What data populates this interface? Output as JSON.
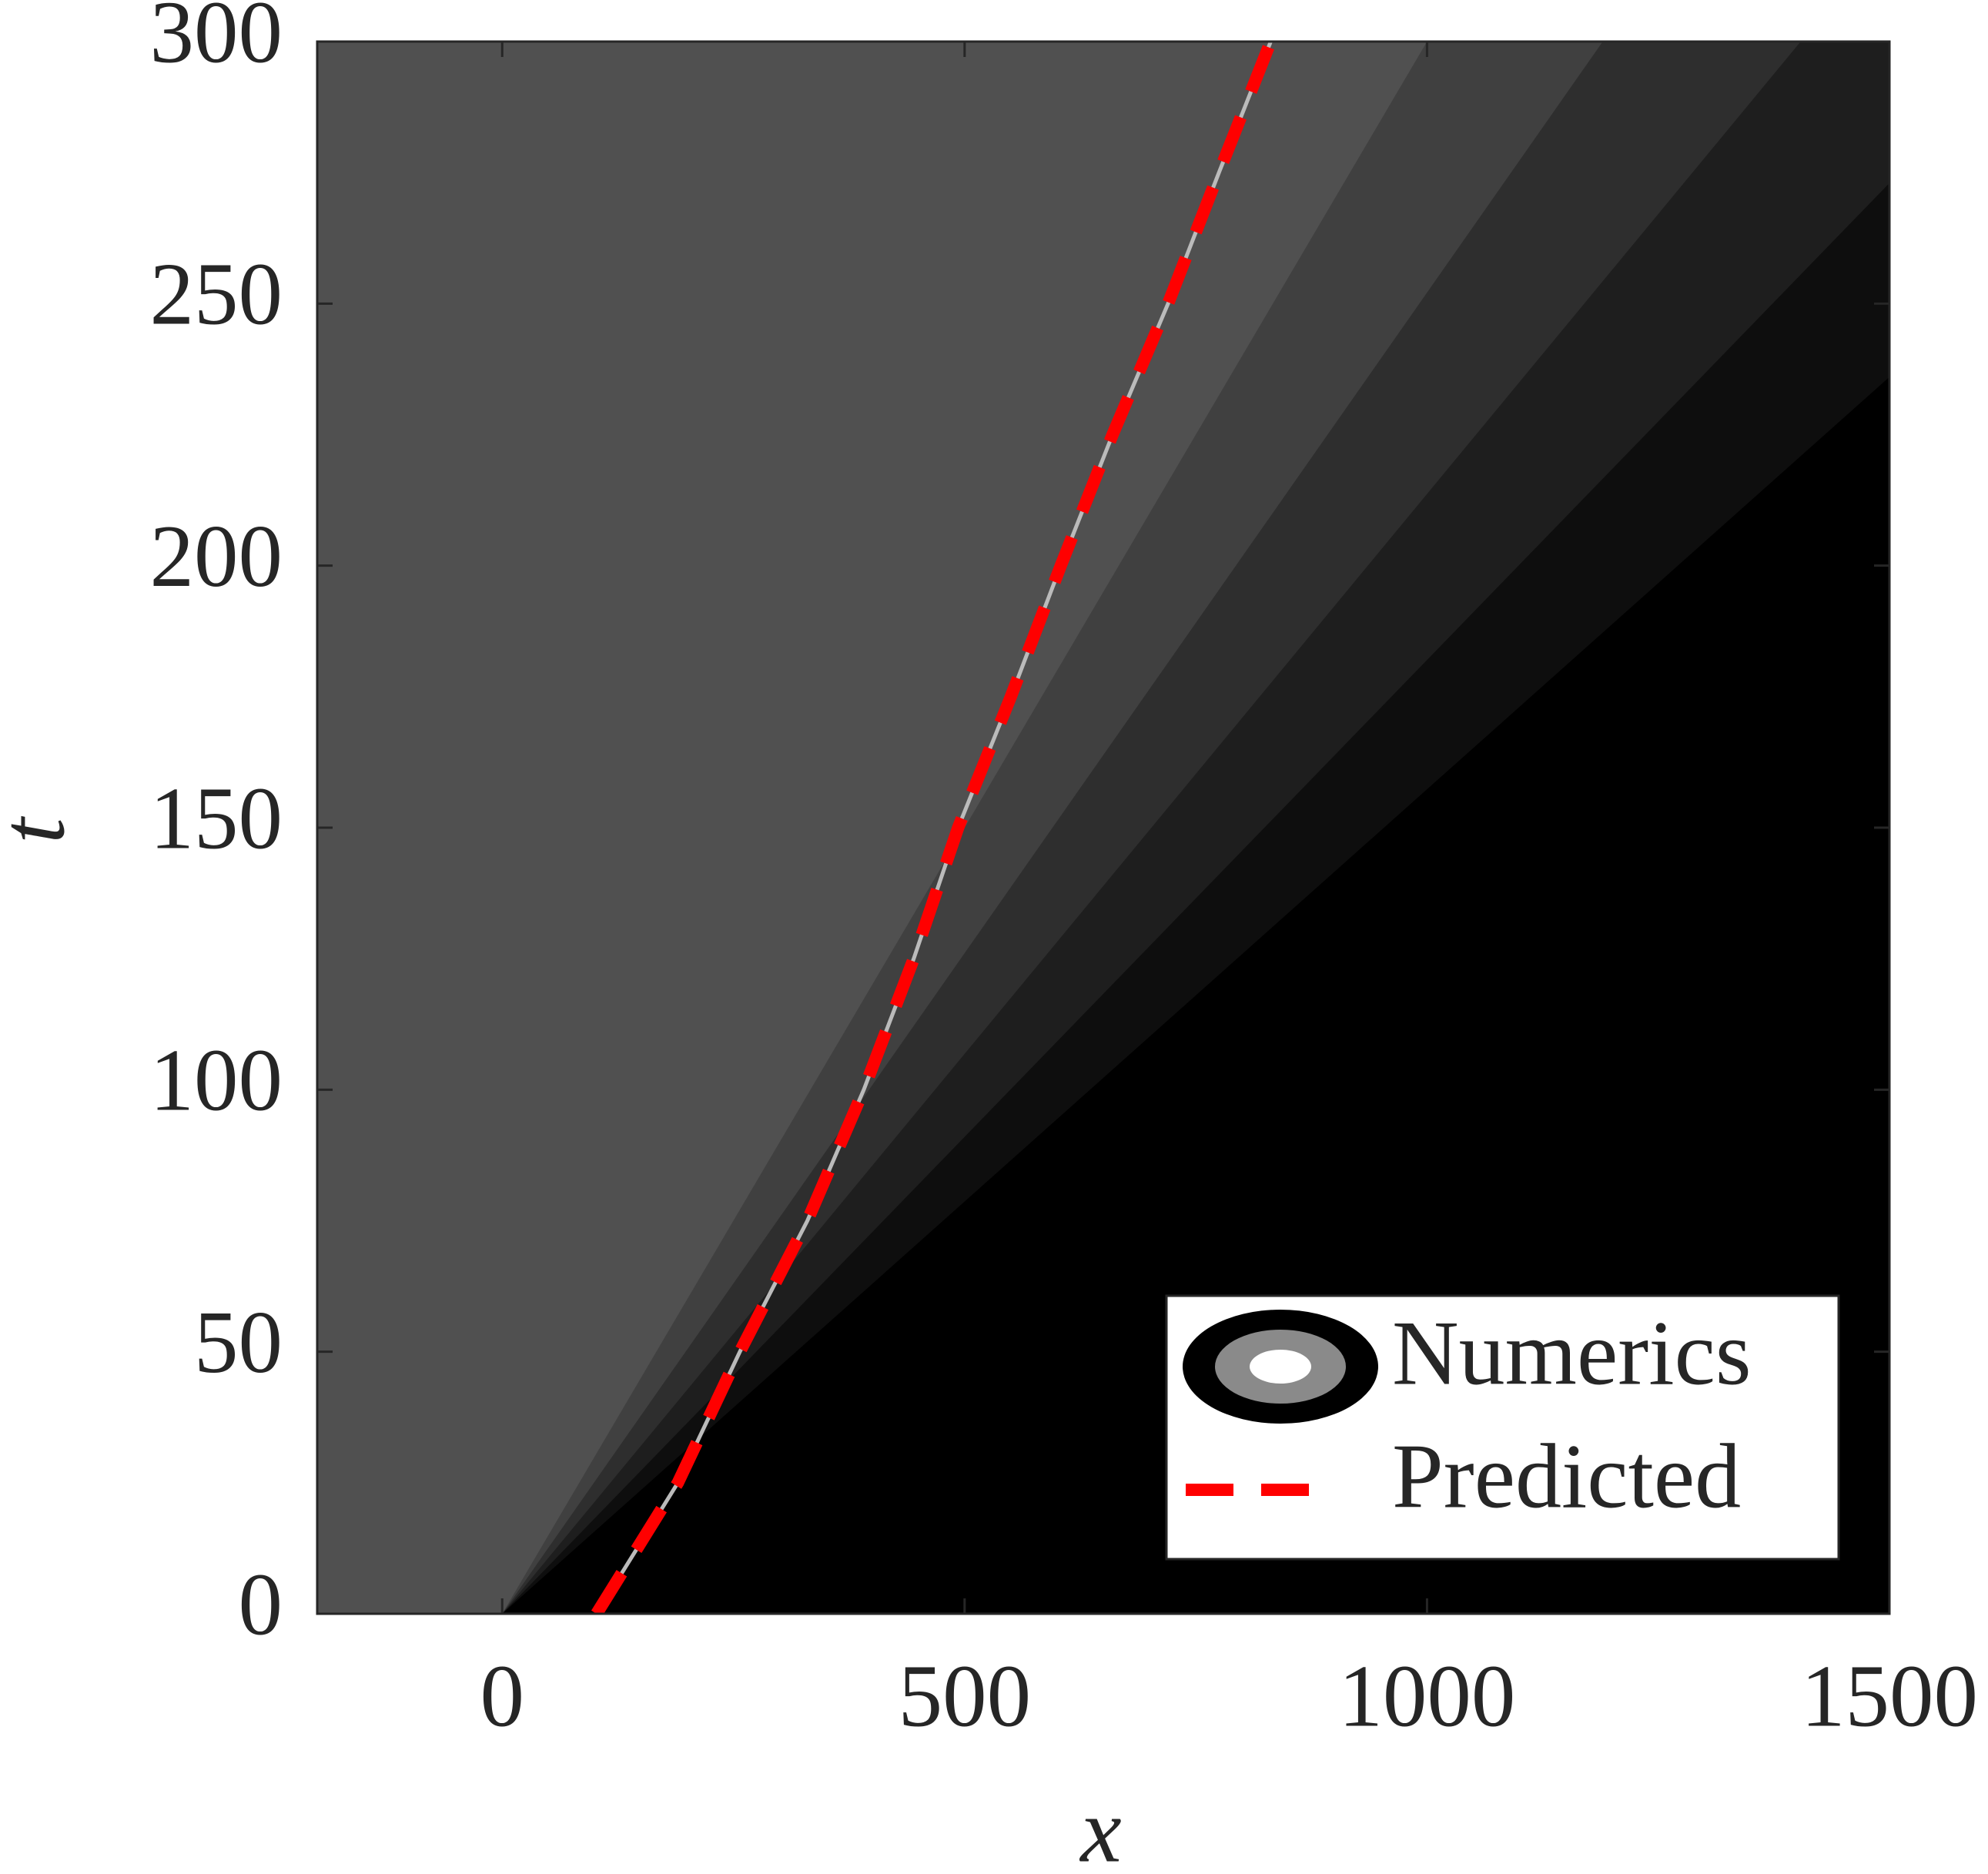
{
  "chart_data": {
    "type": "contour",
    "xlabel": "x",
    "ylabel": "t",
    "xlim": [
      -200,
      1500
    ],
    "ylim": [
      0,
      300
    ],
    "xticks": [
      0,
      500,
      1000,
      1500
    ],
    "yticks": [
      0,
      50,
      100,
      150,
      200,
      250,
      300
    ],
    "background_color": "#505050",
    "contour_bands": [
      {
        "color": "#404040",
        "boundary": [
          1000,
          300
        ]
      },
      {
        "color": "#2e2e2e",
        "boundary": [
          1190,
          300
        ]
      },
      {
        "color": "#1e1e1e",
        "boundary": [
          1404,
          300
        ]
      },
      {
        "color": "#0e0e0e",
        "boundary": [
          1500,
          273
        ]
      },
      {
        "color": "#000000",
        "boundary": [
          1500,
          236
        ]
      }
    ],
    "series": [
      {
        "name": "Numerics"
      },
      {
        "name": "Predicted",
        "color": "#ff0000",
        "dashed": true,
        "x": [
          102,
          190,
          257,
          330,
          391,
          445,
          493,
          550,
          604,
          660,
          720,
          775,
          831
        ],
        "y": [
          0,
          25,
          50,
          75,
          100,
          125,
          150,
          175,
          200,
          225,
          250,
          275,
          300
        ]
      }
    ],
    "legend": "lower right"
  }
}
